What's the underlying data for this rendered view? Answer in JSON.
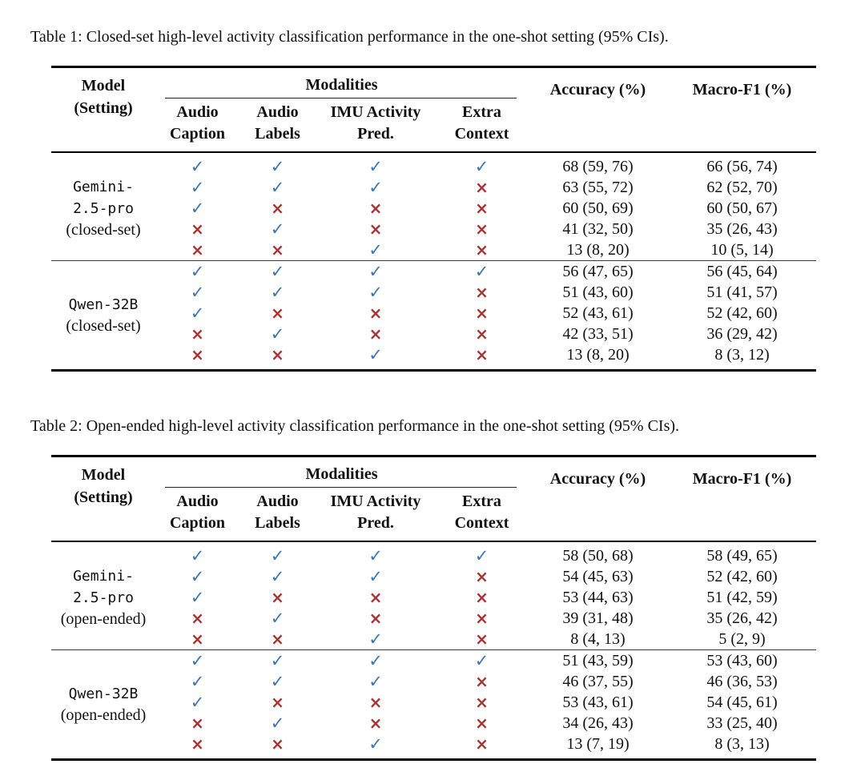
{
  "colors": {
    "check_blue": "#3C76AF",
    "cross_red": "#A93232",
    "text": "#111111",
    "background": "#ffffff"
  },
  "symbols": {
    "check": "✓",
    "cross": "×"
  },
  "tables": [
    {
      "caption": "Table 1: Closed-set high-level activity classification performance in the one-shot setting (95% CIs).",
      "header": {
        "model_line1": "Model",
        "model_line2": "(Setting)",
        "modalities_label": "Modalities",
        "modality_columns": [
          [
            "Audio",
            "Caption"
          ],
          [
            "Audio",
            "Labels"
          ],
          [
            "IMU Activity",
            "Pred."
          ],
          [
            "Extra",
            "Context"
          ]
        ],
        "accuracy_label": "Accuracy (%)",
        "macro_f1_label": "Macro-F1 (%)"
      },
      "sections": [
        {
          "model_name_lines": [
            "Gemini-",
            "2.5-pro"
          ],
          "setting": "(closed-set)",
          "rows": [
            {
              "modalities": [
                true,
                true,
                true,
                true
              ],
              "accuracy": "68 (59, 76)",
              "macro_f1": "66 (56, 74)"
            },
            {
              "modalities": [
                true,
                true,
                true,
                false
              ],
              "accuracy": "63 (55, 72)",
              "macro_f1": "62 (52, 70)"
            },
            {
              "modalities": [
                true,
                false,
                false,
                false
              ],
              "accuracy": "60 (50, 69)",
              "macro_f1": "60 (50, 67)"
            },
            {
              "modalities": [
                false,
                true,
                false,
                false
              ],
              "accuracy": "41 (32, 50)",
              "macro_f1": "35 (26, 43)"
            },
            {
              "modalities": [
                false,
                false,
                true,
                false
              ],
              "accuracy": "13 (8, 20)",
              "macro_f1": "10 (5, 14)"
            }
          ]
        },
        {
          "model_name_lines": [
            "Qwen-32B"
          ],
          "setting": "(closed-set)",
          "rows": [
            {
              "modalities": [
                true,
                true,
                true,
                true
              ],
              "accuracy": "56 (47, 65)",
              "macro_f1": "56 (45, 64)"
            },
            {
              "modalities": [
                true,
                true,
                true,
                false
              ],
              "accuracy": "51 (43, 60)",
              "macro_f1": "51 (41, 57)"
            },
            {
              "modalities": [
                true,
                false,
                false,
                false
              ],
              "accuracy": "52 (43, 61)",
              "macro_f1": "52 (42, 60)"
            },
            {
              "modalities": [
                false,
                true,
                false,
                false
              ],
              "accuracy": "42 (33, 51)",
              "macro_f1": "36 (29, 42)"
            },
            {
              "modalities": [
                false,
                false,
                true,
                false
              ],
              "accuracy": "13 (8, 20)",
              "macro_f1": "8 (3, 12)"
            }
          ]
        }
      ]
    },
    {
      "caption": "Table 2: Open-ended high-level activity classification performance in the one-shot setting (95% CIs).",
      "header": {
        "model_line1": "Model",
        "model_line2": "(Setting)",
        "modalities_label": "Modalities",
        "modality_columns": [
          [
            "Audio",
            "Caption"
          ],
          [
            "Audio",
            "Labels"
          ],
          [
            "IMU Activity",
            "Pred."
          ],
          [
            "Extra",
            "Context"
          ]
        ],
        "accuracy_label": "Accuracy (%)",
        "macro_f1_label": "Macro-F1 (%)"
      },
      "sections": [
        {
          "model_name_lines": [
            "Gemini-",
            "2.5-pro"
          ],
          "setting": "(open-ended)",
          "rows": [
            {
              "modalities": [
                true,
                true,
                true,
                true
              ],
              "accuracy": "58 (50, 68)",
              "macro_f1": "58 (49, 65)"
            },
            {
              "modalities": [
                true,
                true,
                true,
                false
              ],
              "accuracy": "54 (45, 63)",
              "macro_f1": "52 (42, 60)"
            },
            {
              "modalities": [
                true,
                false,
                false,
                false
              ],
              "accuracy": "53 (44, 63)",
              "macro_f1": "51 (42, 59)"
            },
            {
              "modalities": [
                false,
                true,
                false,
                false
              ],
              "accuracy": "39 (31, 48)",
              "macro_f1": "35 (26, 42)"
            },
            {
              "modalities": [
                false,
                false,
                true,
                false
              ],
              "accuracy": "8 (4, 13)",
              "macro_f1": "5 (2, 9)"
            }
          ]
        },
        {
          "model_name_lines": [
            "Qwen-32B"
          ],
          "setting": "(open-ended)",
          "rows": [
            {
              "modalities": [
                true,
                true,
                true,
                true
              ],
              "accuracy": "51 (43, 59)",
              "macro_f1": "53 (43, 60)"
            },
            {
              "modalities": [
                true,
                true,
                true,
                false
              ],
              "accuracy": "46 (37, 55)",
              "macro_f1": "46 (36, 53)"
            },
            {
              "modalities": [
                true,
                false,
                false,
                false
              ],
              "accuracy": "53 (43, 61)",
              "macro_f1": "54 (45, 61)"
            },
            {
              "modalities": [
                false,
                true,
                false,
                false
              ],
              "accuracy": "34 (26, 43)",
              "macro_f1": "33 (25, 40)"
            },
            {
              "modalities": [
                false,
                false,
                true,
                false
              ],
              "accuracy": "13 (7, 19)",
              "macro_f1": "8 (3, 13)"
            }
          ]
        }
      ]
    }
  ]
}
